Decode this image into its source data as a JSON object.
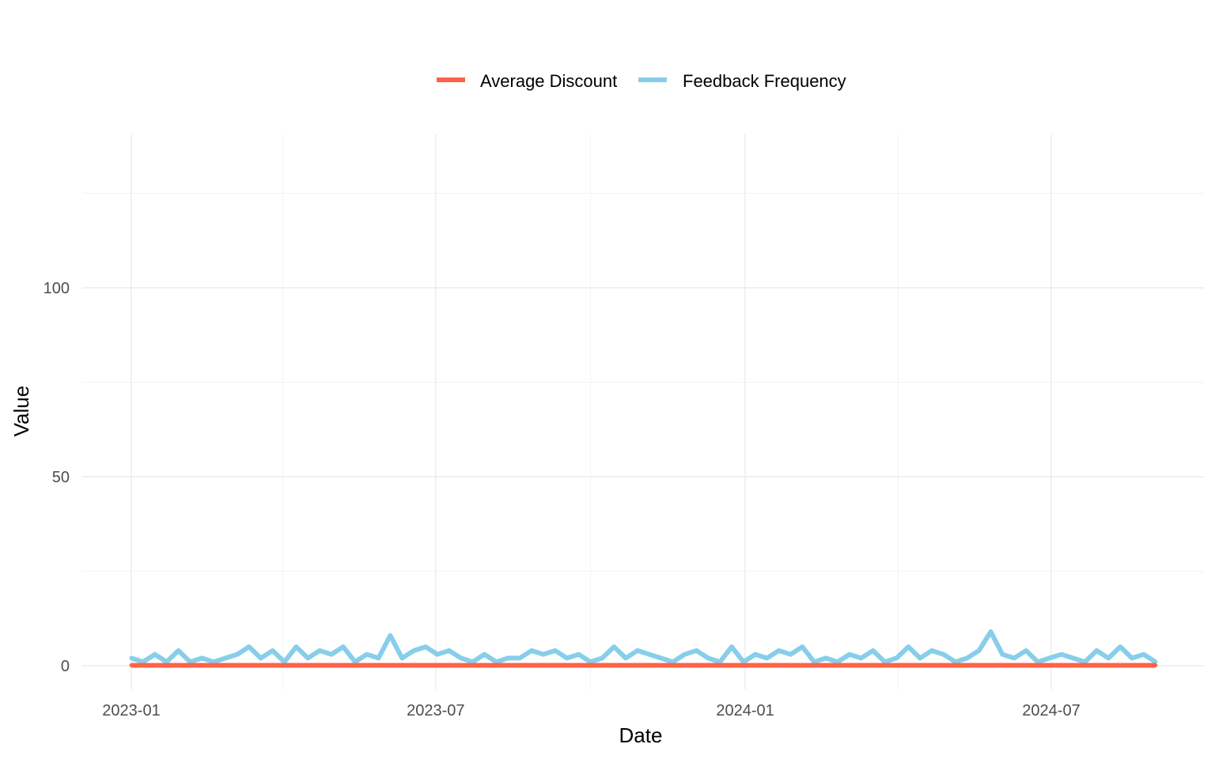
{
  "chart_data": {
    "type": "line",
    "xlabel": "Date",
    "ylabel": "Value",
    "x_range": [
      "2023-01-01",
      "2024-09-01"
    ],
    "ylim": [
      0,
      125
    ],
    "y_ticks": [
      0,
      50,
      100
    ],
    "x_ticks": [
      "2023-01",
      "2023-07",
      "2024-01",
      "2024-07"
    ],
    "grid": true,
    "legend_position": "top",
    "series": [
      {
        "name": "Average Discount",
        "color": "#FF6347",
        "x": [
          "2023-01-01",
          "2024-09-01"
        ],
        "values": [
          0.1,
          0.1
        ]
      },
      {
        "name": "Feedback Frequency",
        "color": "#87CEEB",
        "x": [
          "2023-01-01",
          "2023-01-08",
          "2023-01-15",
          "2023-01-22",
          "2023-01-29",
          "2023-02-05",
          "2023-02-12",
          "2023-02-19",
          "2023-02-26",
          "2023-03-05",
          "2023-03-12",
          "2023-03-19",
          "2023-03-26",
          "2023-04-02",
          "2023-04-09",
          "2023-04-16",
          "2023-04-23",
          "2023-04-30",
          "2023-05-07",
          "2023-05-14",
          "2023-05-21",
          "2023-05-28",
          "2023-06-04",
          "2023-06-11",
          "2023-06-18",
          "2023-06-25",
          "2023-07-02",
          "2023-07-09",
          "2023-07-16",
          "2023-07-23",
          "2023-07-30",
          "2023-08-06",
          "2023-08-13",
          "2023-08-20",
          "2023-08-27",
          "2023-09-03",
          "2023-09-10",
          "2023-09-17",
          "2023-09-24",
          "2023-10-01",
          "2023-10-08",
          "2023-10-15",
          "2023-10-22",
          "2023-10-29",
          "2023-11-05",
          "2023-11-12",
          "2023-11-19",
          "2023-11-26",
          "2023-12-03",
          "2023-12-10",
          "2023-12-17",
          "2023-12-24",
          "2023-12-31",
          "2024-01-07",
          "2024-01-14",
          "2024-01-21",
          "2024-01-28",
          "2024-02-04",
          "2024-02-11",
          "2024-02-18",
          "2024-02-25",
          "2024-03-03",
          "2024-03-10",
          "2024-03-17",
          "2024-03-24",
          "2024-03-31",
          "2024-04-07",
          "2024-04-14",
          "2024-04-21",
          "2024-04-28",
          "2024-05-05",
          "2024-05-12",
          "2024-05-19",
          "2024-05-26",
          "2024-06-02",
          "2024-06-09",
          "2024-06-16",
          "2024-06-23",
          "2024-06-30",
          "2024-07-07",
          "2024-07-14",
          "2024-07-21",
          "2024-07-28",
          "2024-08-04",
          "2024-08-11",
          "2024-08-18",
          "2024-08-25",
          "2024-09-01"
        ],
        "values": [
          2,
          1,
          3,
          1,
          4,
          1,
          2,
          1,
          2,
          3,
          5,
          2,
          4,
          1,
          5,
          2,
          4,
          3,
          5,
          1,
          3,
          2,
          8,
          2,
          4,
          5,
          3,
          4,
          2,
          1,
          3,
          1,
          2,
          2,
          4,
          3,
          4,
          2,
          3,
          1,
          2,
          5,
          2,
          4,
          3,
          2,
          1,
          3,
          4,
          2,
          1,
          5,
          1,
          3,
          2,
          4,
          3,
          5,
          1,
          2,
          1,
          3,
          2,
          4,
          1,
          2,
          5,
          2,
          4,
          3,
          1,
          2,
          4,
          9,
          3,
          2,
          4,
          1,
          2,
          3,
          2,
          1,
          4,
          2,
          5,
          2,
          3,
          1
        ]
      }
    ]
  }
}
